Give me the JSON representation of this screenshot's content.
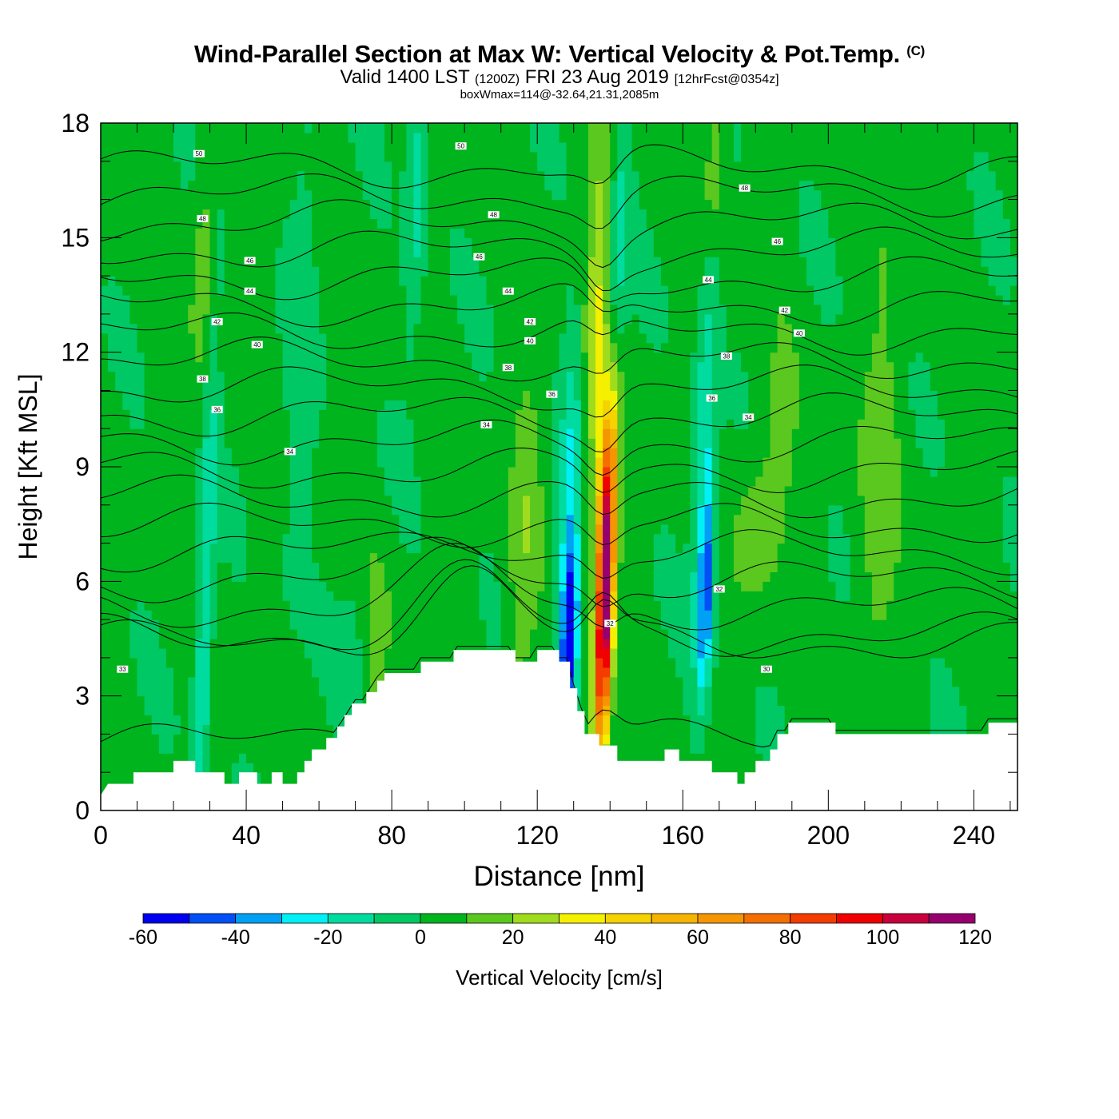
{
  "title": {
    "main": "Wind-Parallel Section at Max W: Vertical Velocity & Pot.Temp.",
    "copyright": "(C)",
    "valid_prefix": "Valid 1400 LST",
    "valid_utc": "(1200Z)",
    "valid_date": "FRI 23 Aug 2019",
    "forecast": "[12hrFcst@0354z]",
    "box_wmax": "boxWmax=114@-32.64,21.31,2085m"
  },
  "chart_data": {
    "type": "heatmap",
    "xlabel": "Distance [nm]",
    "ylabel": "Height [Kft MSL]",
    "xlim": [
      0,
      252
    ],
    "ylim": [
      0,
      18
    ],
    "x_ticks": [
      0,
      40,
      80,
      120,
      160,
      200,
      240
    ],
    "y_ticks": [
      0,
      3,
      6,
      9,
      12,
      15,
      18
    ],
    "colorbar": {
      "label": "Vertical Velocity [cm/s]",
      "ticks": [
        -60,
        -40,
        -20,
        0,
        20,
        40,
        60,
        80,
        100,
        120
      ],
      "levels": [
        -60,
        -50,
        -40,
        -30,
        -20,
        -10,
        0,
        10,
        20,
        30,
        40,
        50,
        60,
        70,
        80,
        90,
        100,
        110,
        120
      ],
      "colors": [
        "#0000f0",
        "#0050f5",
        "#00a0f5",
        "#00f0f5",
        "#00dca0",
        "#00c864",
        "#00b41e",
        "#5ac81e",
        "#a0dc1e",
        "#f5f000",
        "#f5d200",
        "#f5b400",
        "#f59600",
        "#f56e00",
        "#f53c00",
        "#f00000",
        "#c8003c",
        "#96006e"
      ]
    },
    "terrain": [
      [
        0,
        0.4
      ],
      [
        2,
        0.7
      ],
      [
        9,
        0.7
      ],
      [
        9,
        1.0
      ],
      [
        20,
        1.0
      ],
      [
        20,
        1.3
      ],
      [
        26,
        1.3
      ],
      [
        26,
        1.0
      ],
      [
        34,
        1.0
      ],
      [
        34,
        0.7
      ],
      [
        38,
        0.7
      ],
      [
        38,
        1.0
      ],
      [
        43,
        1.0
      ],
      [
        43,
        0.7
      ],
      [
        47,
        0.7
      ],
      [
        47,
        1.0
      ],
      [
        50,
        1.0
      ],
      [
        50,
        0.7
      ],
      [
        54,
        0.7
      ],
      [
        54,
        1.0
      ],
      [
        56,
        1.0
      ],
      [
        56,
        1.3
      ],
      [
        58,
        1.3
      ],
      [
        58,
        1.6
      ],
      [
        62,
        1.6
      ],
      [
        62,
        1.9
      ],
      [
        65,
        1.9
      ],
      [
        65,
        2.2
      ],
      [
        67,
        2.2
      ],
      [
        67,
        2.5
      ],
      [
        69,
        2.5
      ],
      [
        69,
        2.8
      ],
      [
        73,
        2.8
      ],
      [
        73,
        3.1
      ],
      [
        76,
        3.1
      ],
      [
        76,
        3.4
      ],
      [
        78,
        3.4
      ],
      [
        78,
        3.6
      ],
      [
        84,
        3.6
      ],
      [
        84,
        3.6
      ],
      [
        88,
        3.6
      ],
      [
        88,
        3.9
      ],
      [
        97,
        3.9
      ],
      [
        97,
        4.2
      ],
      [
        114,
        4.2
      ],
      [
        114,
        3.9
      ],
      [
        120,
        3.9
      ],
      [
        120,
        4.2
      ],
      [
        126,
        4.2
      ],
      [
        126,
        3.9
      ],
      [
        129,
        3.9
      ],
      [
        129,
        3.2
      ],
      [
        131,
        3.2
      ],
      [
        131,
        2.6
      ],
      [
        133,
        2.6
      ],
      [
        133,
        2.0
      ],
      [
        137,
        2.0
      ],
      [
        137,
        1.7
      ],
      [
        142,
        1.7
      ],
      [
        142,
        1.3
      ],
      [
        155,
        1.3
      ],
      [
        155,
        1.6
      ],
      [
        159,
        1.6
      ],
      [
        159,
        1.3
      ],
      [
        168,
        1.3
      ],
      [
        168,
        1.0
      ],
      [
        175,
        1.0
      ],
      [
        175,
        0.7
      ],
      [
        177,
        0.7
      ],
      [
        177,
        1.0
      ],
      [
        180,
        1.0
      ],
      [
        180,
        1.3
      ],
      [
        184,
        1.3
      ],
      [
        184,
        1.6
      ],
      [
        186,
        1.6
      ],
      [
        186,
        2.0
      ],
      [
        189,
        2.0
      ],
      [
        189,
        2.3
      ],
      [
        202,
        2.3
      ],
      [
        202,
        2.0
      ],
      [
        244,
        2.0
      ],
      [
        244,
        2.3
      ],
      [
        252,
        2.3
      ]
    ],
    "updrafts": [
      {
        "x": 138.5,
        "y": 5.2,
        "sx": 1.6,
        "sy": 3.0,
        "amp": 114
      },
      {
        "x": 139.0,
        "y": 8.5,
        "sx": 2.2,
        "sy": 2.0,
        "amp": 35
      },
      {
        "x": 137.0,
        "y": 13.5,
        "sx": 2.5,
        "sy": 4.0,
        "amp": 25
      },
      {
        "x": 116.0,
        "y": 6.5,
        "sx": 3.0,
        "sy": 4.0,
        "amp": 14
      },
      {
        "x": 180.0,
        "y": 7.5,
        "sx": 4.0,
        "sy": 1.5,
        "amp": 14
      },
      {
        "x": 214.0,
        "y": 8.5,
        "sx": 4.0,
        "sy": 5.0,
        "amp": 12
      },
      {
        "x": 75.0,
        "y": 4.5,
        "sx": 3.0,
        "sy": 1.5,
        "amp": 13
      },
      {
        "x": 28.0,
        "y": 14.5,
        "sx": 2.0,
        "sy": 2.5,
        "amp": 14
      },
      {
        "x": 169.0,
        "y": 17.0,
        "sx": 2.0,
        "sy": 1.5,
        "amp": 16
      },
      {
        "x": 187.0,
        "y": 9.5,
        "sx": 3.0,
        "sy": 2.0,
        "amp": 10
      }
    ],
    "downdrafts": [
      {
        "x": 129.0,
        "y": 4.6,
        "sx": 1.6,
        "sy": 1.6,
        "amp": -60
      },
      {
        "x": 128.5,
        "y": 7.5,
        "sx": 2.0,
        "sy": 3.5,
        "amp": -25
      },
      {
        "x": 166.5,
        "y": 5.8,
        "sx": 1.5,
        "sy": 1.8,
        "amp": -45
      },
      {
        "x": 166.0,
        "y": 9.5,
        "sx": 2.0,
        "sy": 3.5,
        "amp": -24
      },
      {
        "x": 28.5,
        "y": 5.0,
        "sx": 1.6,
        "sy": 4.5,
        "amp": -24
      },
      {
        "x": 87.0,
        "y": 16.5,
        "sx": 2.0,
        "sy": 3.0,
        "amp": -18
      },
      {
        "x": 142.0,
        "y": 14.5,
        "sx": 2.0,
        "sy": 3.0,
        "amp": -20
      },
      {
        "x": 70.0,
        "y": 4.0,
        "sx": 3.0,
        "sy": 2.0,
        "amp": -10
      },
      {
        "x": 55.0,
        "y": 12.0,
        "sx": 3.0,
        "sy": 5.0,
        "amp": -8
      }
    ],
    "theta_levels": [
      32,
      33,
      34,
      35,
      36,
      37,
      38,
      39,
      40,
      41,
      42,
      43,
      44,
      45,
      46,
      47,
      48,
      49,
      50,
      51
    ],
    "theta_labels": [
      {
        "text": "33",
        "x": 6,
        "y": 3.7
      },
      {
        "text": "34",
        "x": 52,
        "y": 9.4
      },
      {
        "text": "34",
        "x": 106,
        "y": 10.1
      },
      {
        "text": "34",
        "x": 178,
        "y": 10.3
      },
      {
        "text": "36",
        "x": 32,
        "y": 10.5
      },
      {
        "text": "36",
        "x": 124,
        "y": 10.9
      },
      {
        "text": "36",
        "x": 168,
        "y": 10.8
      },
      {
        "text": "38",
        "x": 28,
        "y": 11.3
      },
      {
        "text": "38",
        "x": 112,
        "y": 11.6
      },
      {
        "text": "38",
        "x": 172,
        "y": 11.9
      },
      {
        "text": "40",
        "x": 43,
        "y": 12.2
      },
      {
        "text": "40",
        "x": 118,
        "y": 12.3
      },
      {
        "text": "40",
        "x": 192,
        "y": 12.5
      },
      {
        "text": "42",
        "x": 32,
        "y": 12.8
      },
      {
        "text": "42",
        "x": 118,
        "y": 12.8
      },
      {
        "text": "42",
        "x": 188,
        "y": 13.1
      },
      {
        "text": "44",
        "x": 41,
        "y": 13.6
      },
      {
        "text": "44",
        "x": 112,
        "y": 13.6
      },
      {
        "text": "44",
        "x": 167,
        "y": 13.9
      },
      {
        "text": "46",
        "x": 41,
        "y": 14.4
      },
      {
        "text": "46",
        "x": 104,
        "y": 14.5
      },
      {
        "text": "46",
        "x": 186,
        "y": 14.9
      },
      {
        "text": "48",
        "x": 28,
        "y": 15.5
      },
      {
        "text": "48",
        "x": 108,
        "y": 15.6
      },
      {
        "text": "48",
        "x": 177,
        "y": 16.3
      },
      {
        "text": "50",
        "x": 27,
        "y": 17.2
      },
      {
        "text": "50",
        "x": 99,
        "y": 17.4
      },
      {
        "text": "32",
        "x": 170,
        "y": 5.8
      },
      {
        "text": "32",
        "x": 140,
        "y": 4.9
      },
      {
        "text": "30",
        "x": 183,
        "y": 3.7
      }
    ]
  }
}
